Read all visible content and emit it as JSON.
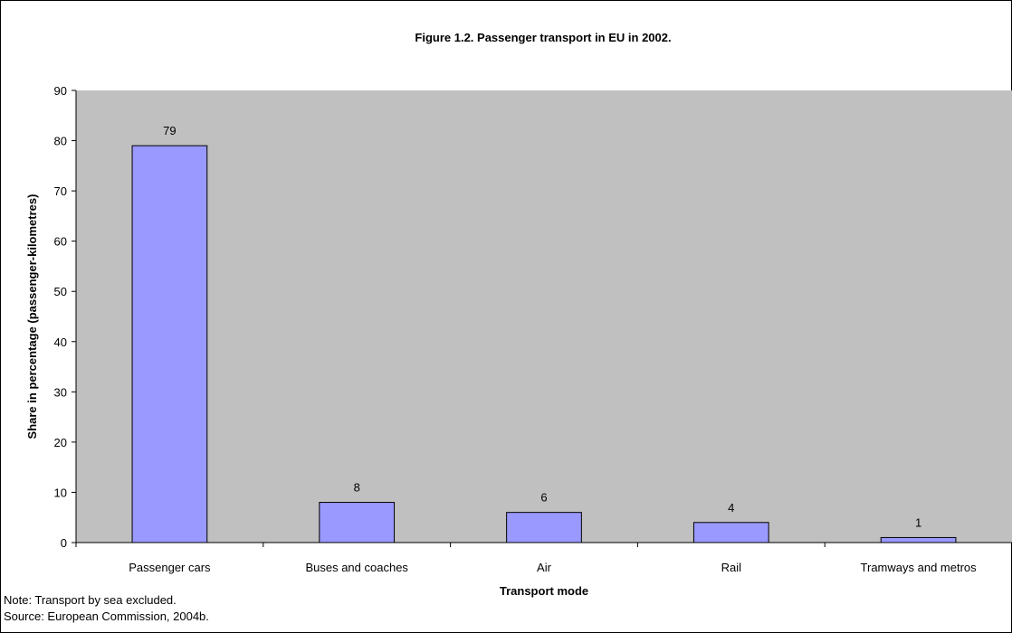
{
  "chart_data": {
    "type": "bar",
    "title": "Figure 1.2. Passenger transport in EU in 2002.",
    "xlabel": "Transport mode",
    "ylabel": "Share in percentage (passenger-kilometres)",
    "categories": [
      "Passenger cars",
      "Buses and coaches",
      "Air",
      "Rail",
      "Tramways and metros"
    ],
    "values": [
      79,
      8,
      6,
      4,
      1
    ],
    "data_labels": [
      "79",
      "8",
      "6",
      "4",
      "1"
    ],
    "ylim": [
      0,
      90
    ],
    "yticks": [
      "0",
      "10",
      "20",
      "30",
      "40",
      "50",
      "60",
      "70",
      "80",
      "90"
    ],
    "grid": false,
    "legend": "none",
    "colors": {
      "plot_background": "#c0c0c0",
      "bar_fill": "#9999ff",
      "bar_stroke": "#000000"
    }
  },
  "notes": {
    "note": "Note: Transport by sea excluded.",
    "source": "Source: European Commission, 2004b."
  }
}
